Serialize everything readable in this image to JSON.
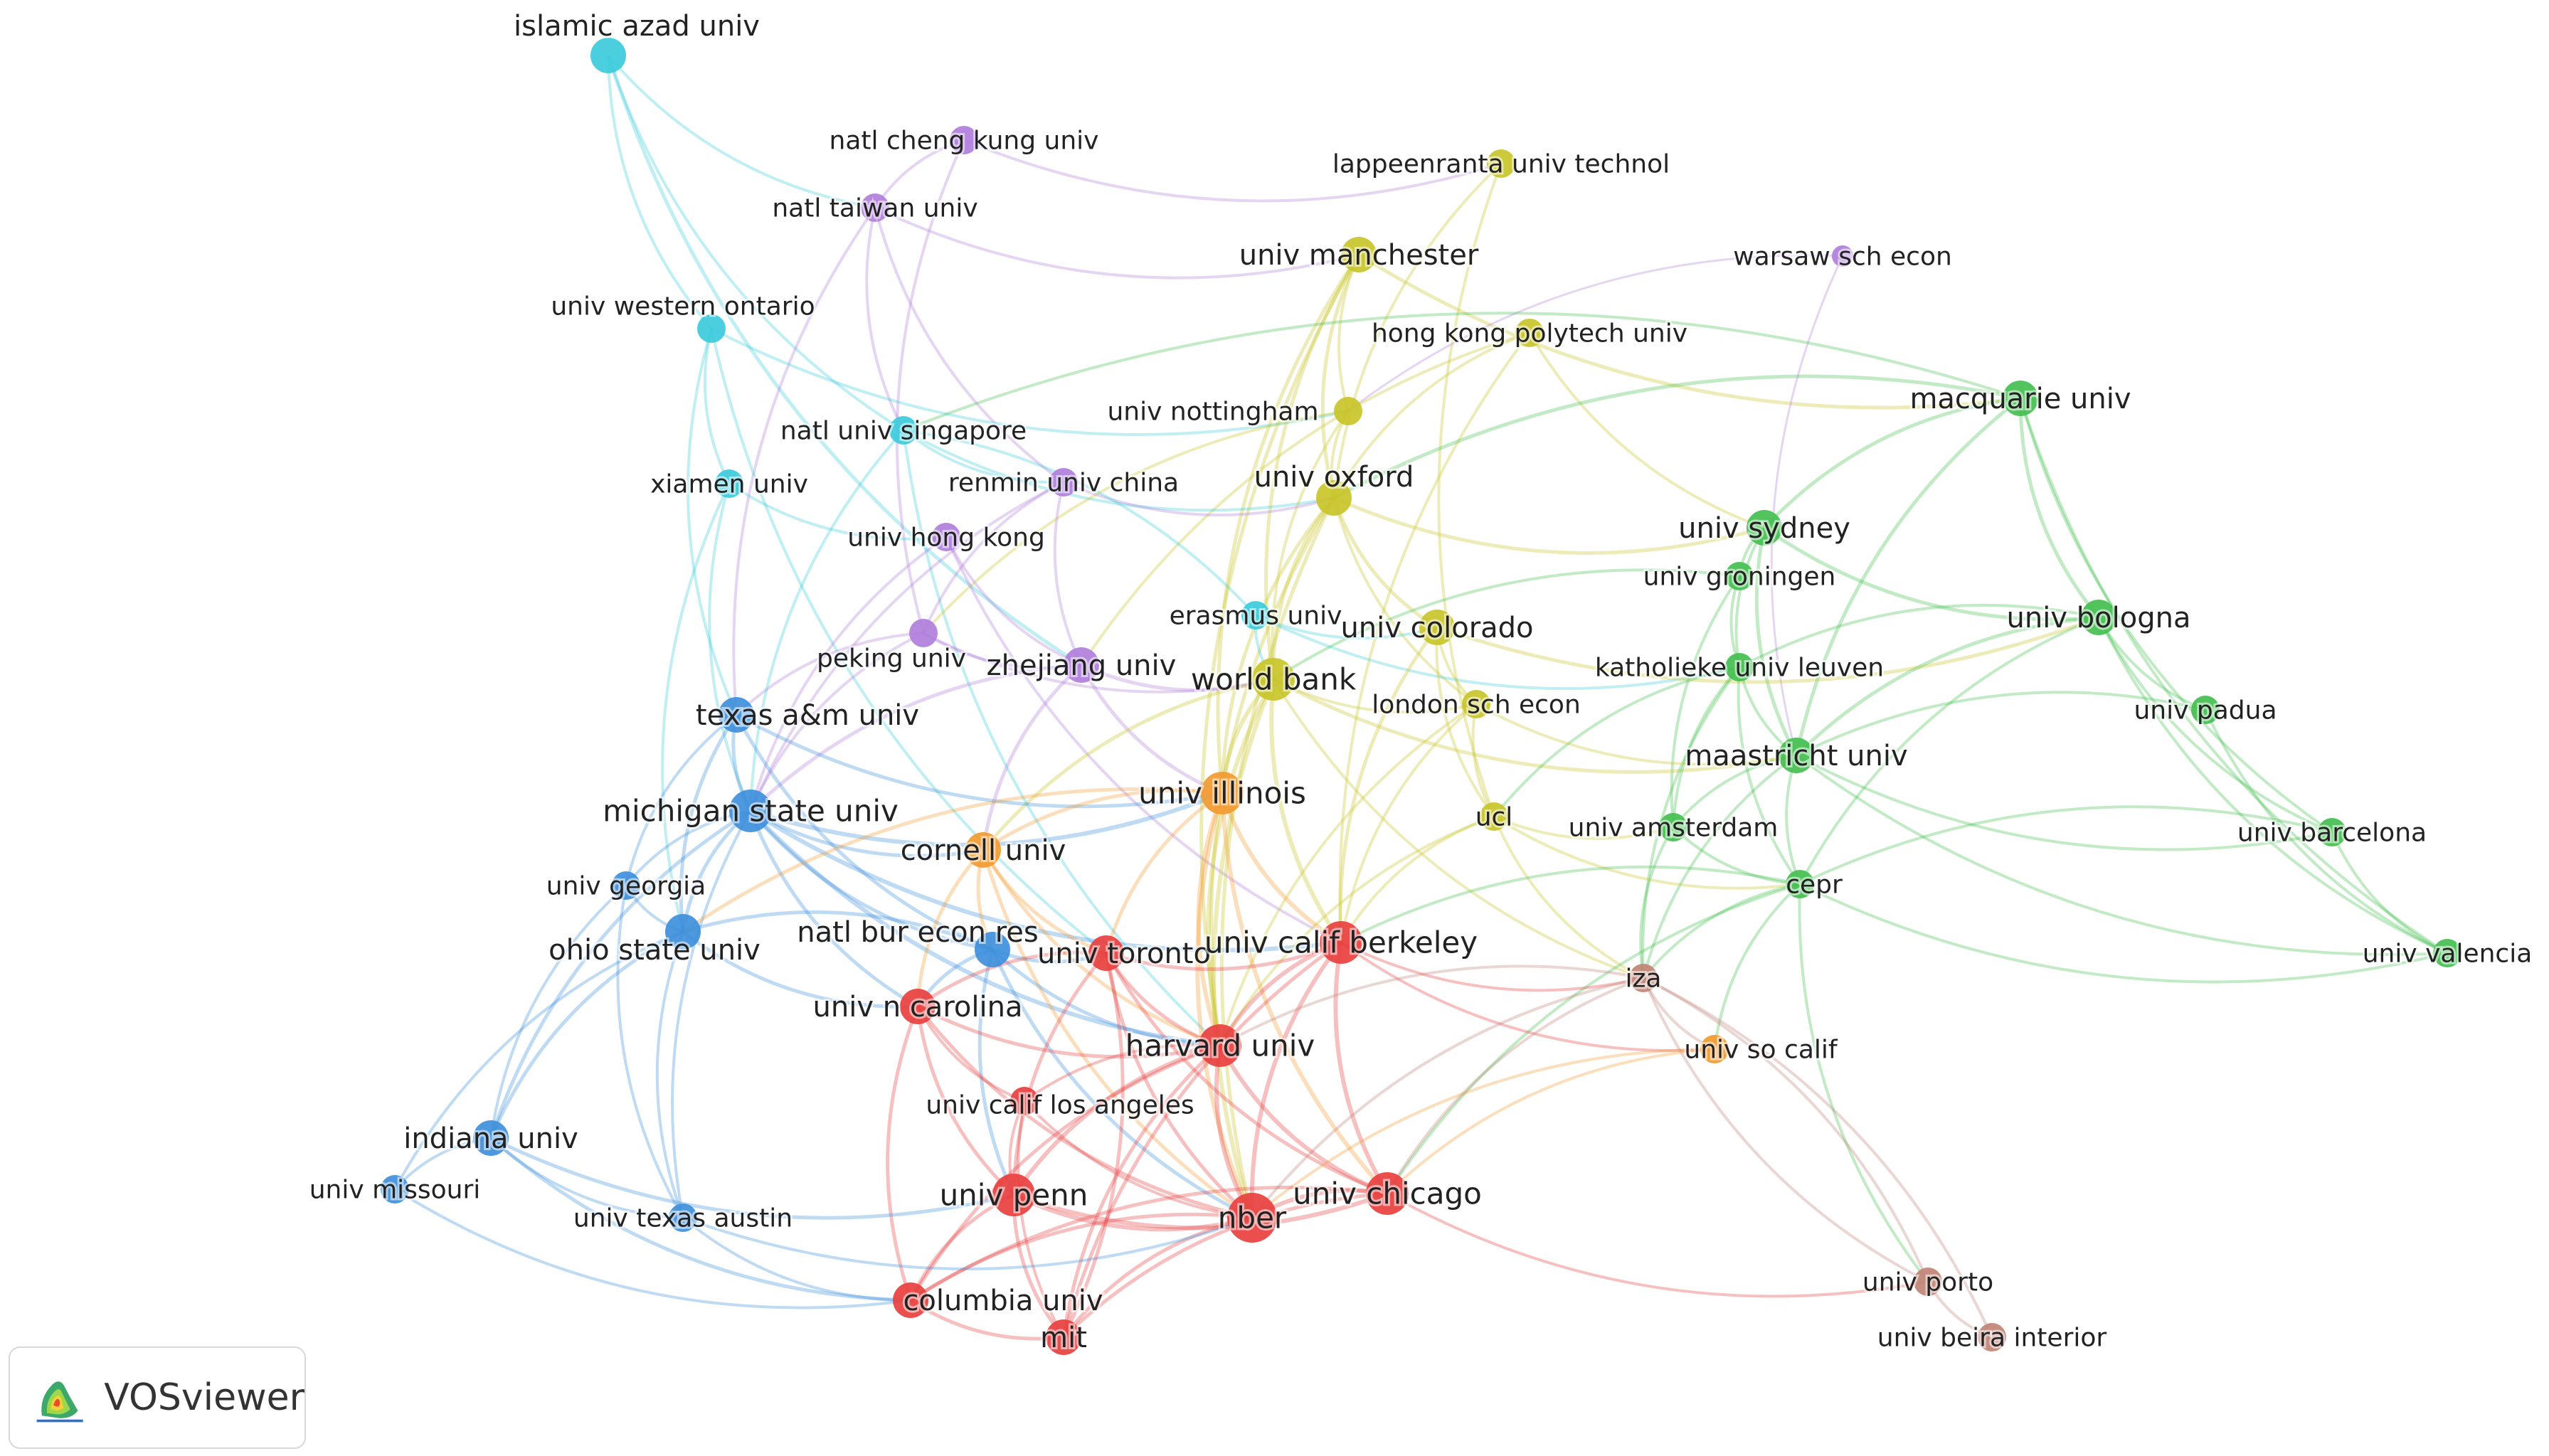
{
  "app": {
    "name": "VOSviewer"
  },
  "colors": {
    "cluster_red": "#e8403f",
    "cluster_green": "#44bf4f",
    "cluster_blue": "#3e8fdb",
    "cluster_yellow": "#c8c42a",
    "cluster_purple": "#b07fdc",
    "cluster_cyan": "#3ccbdc",
    "cluster_orange": "#f29a30",
    "cluster_brown": "#c08476"
  },
  "nodes": [
    {
      "id": "islamic_azad_univ",
      "label": "islamic azad univ",
      "cluster": "cyan",
      "w": 3
    },
    {
      "id": "natl_cheng_kung_univ",
      "label": "natl cheng kung univ",
      "cluster": "purple",
      "w": 2
    },
    {
      "id": "natl_taiwan_univ",
      "label": "natl taiwan univ",
      "cluster": "purple",
      "w": 2
    },
    {
      "id": "lappeenranta_univ_technol",
      "label": "lappeenranta univ technol",
      "cluster": "yellow",
      "w": 2
    },
    {
      "id": "univ_manchester",
      "label": "univ manchester",
      "cluster": "yellow",
      "w": 3
    },
    {
      "id": "warsaw_sch_econ",
      "label": "warsaw sch econ",
      "cluster": "purple",
      "w": 1
    },
    {
      "id": "univ_western_ontario",
      "label": "univ western ontario",
      "cluster": "cyan",
      "w": 2
    },
    {
      "id": "hong_kong_polytech_univ",
      "label": "hong kong polytech univ",
      "cluster": "yellow",
      "w": 2
    },
    {
      "id": "macquarie_univ",
      "label": "macquarie univ",
      "cluster": "green",
      "w": 3
    },
    {
      "id": "natl_univ_singapore",
      "label": "natl univ singapore",
      "cluster": "cyan",
      "w": 2
    },
    {
      "id": "univ_nottingham",
      "label": "univ nottingham",
      "cluster": "yellow",
      "w": 2
    },
    {
      "id": "renmin_univ_china",
      "label": "renmin univ china",
      "cluster": "purple",
      "w": 2
    },
    {
      "id": "xiamen_univ",
      "label": "xiamen univ",
      "cluster": "cyan",
      "w": 2
    },
    {
      "id": "univ_oxford",
      "label": "univ oxford",
      "cluster": "yellow",
      "w": 3
    },
    {
      "id": "univ_hong_kong",
      "label": "univ hong kong",
      "cluster": "purple",
      "w": 2
    },
    {
      "id": "univ_sydney",
      "label": "univ sydney",
      "cluster": "green",
      "w": 3
    },
    {
      "id": "univ_groningen",
      "label": "univ groningen",
      "cluster": "green",
      "w": 2
    },
    {
      "id": "erasmus_univ",
      "label": "erasmus univ",
      "cluster": "cyan",
      "w": 2
    },
    {
      "id": "univ_colorado",
      "label": "univ colorado",
      "cluster": "yellow",
      "w": 3
    },
    {
      "id": "univ_bologna",
      "label": "univ bologna",
      "cluster": "green",
      "w": 3
    },
    {
      "id": "peking_univ",
      "label": "peking univ",
      "cluster": "purple",
      "w": 2
    },
    {
      "id": "zhejiang_univ",
      "label": "zhejiang univ",
      "cluster": "purple",
      "w": 3
    },
    {
      "id": "world_bank",
      "label": "world bank",
      "cluster": "yellow",
      "w": 4
    },
    {
      "id": "katholieke_univ_leuven",
      "label": "katholieke univ leuven",
      "cluster": "green",
      "w": 2
    },
    {
      "id": "texas_am_univ",
      "label": "texas a&m univ",
      "cluster": "blue",
      "w": 3
    },
    {
      "id": "london_sch_econ",
      "label": "london sch econ",
      "cluster": "yellow",
      "w": 2
    },
    {
      "id": "univ_padua",
      "label": "univ padua",
      "cluster": "green",
      "w": 2
    },
    {
      "id": "maastricht_univ",
      "label": "maastricht univ",
      "cluster": "green",
      "w": 3
    },
    {
      "id": "michigan_state_univ",
      "label": "michigan state univ",
      "cluster": "blue",
      "w": 4
    },
    {
      "id": "univ_illinois",
      "label": "univ illinois",
      "cluster": "orange",
      "w": 4
    },
    {
      "id": "ucl",
      "label": "ucl",
      "cluster": "yellow",
      "w": 2
    },
    {
      "id": "univ_amsterdam",
      "label": "univ amsterdam",
      "cluster": "green",
      "w": 2
    },
    {
      "id": "univ_barcelona",
      "label": "univ barcelona",
      "cluster": "green",
      "w": 2
    },
    {
      "id": "cornell_univ",
      "label": "cornell univ",
      "cluster": "orange",
      "w": 3
    },
    {
      "id": "univ_georgia",
      "label": "univ georgia",
      "cluster": "blue",
      "w": 2
    },
    {
      "id": "cepr",
      "label": "cepr",
      "cluster": "green",
      "w": 2
    },
    {
      "id": "natl_bur_econ_res",
      "label": "natl bur econ res",
      "cluster": "blue",
      "w": 3
    },
    {
      "id": "univ_toronto",
      "label": "univ toronto",
      "cluster": "red",
      "w": 3
    },
    {
      "id": "univ_calif_berkeley",
      "label": "univ calif berkeley",
      "cluster": "red",
      "w": 4
    },
    {
      "id": "ohio_state_univ",
      "label": "ohio state univ",
      "cluster": "blue",
      "w": 3
    },
    {
      "id": "univ_valencia",
      "label": "univ valencia",
      "cluster": "green",
      "w": 2
    },
    {
      "id": "iza",
      "label": "iza",
      "cluster": "brown",
      "w": 2
    },
    {
      "id": "univ_n_carolina",
      "label": "univ n carolina",
      "cluster": "red",
      "w": 3
    },
    {
      "id": "harvard_univ",
      "label": "harvard univ",
      "cluster": "red",
      "w": 4
    },
    {
      "id": "univ_so_calif",
      "label": "univ so calif",
      "cluster": "orange",
      "w": 2
    },
    {
      "id": "univ_calif_los_angeles",
      "label": "univ calif los angeles",
      "cluster": "red",
      "w": 2
    },
    {
      "id": "indiana_univ",
      "label": "indiana univ",
      "cluster": "blue",
      "w": 3
    },
    {
      "id": "univ_missouri",
      "label": "univ missouri",
      "cluster": "blue",
      "w": 2
    },
    {
      "id": "univ_penn",
      "label": "univ penn",
      "cluster": "red",
      "w": 4
    },
    {
      "id": "univ_chicago",
      "label": "univ chicago",
      "cluster": "red",
      "w": 4
    },
    {
      "id": "nber",
      "label": "nber",
      "cluster": "red",
      "w": 5
    },
    {
      "id": "univ_texas_austin",
      "label": "univ texas austin",
      "cluster": "blue",
      "w": 2
    },
    {
      "id": "univ_porto",
      "label": "univ porto",
      "cluster": "brown",
      "w": 2
    },
    {
      "id": "columbia_univ",
      "label": "columbia univ",
      "cluster": "red",
      "w": 3
    },
    {
      "id": "mit",
      "label": "mit",
      "cluster": "red",
      "w": 3
    },
    {
      "id": "univ_beira_interior",
      "label": "univ beira interior",
      "cluster": "brown",
      "w": 2
    }
  ]
}
